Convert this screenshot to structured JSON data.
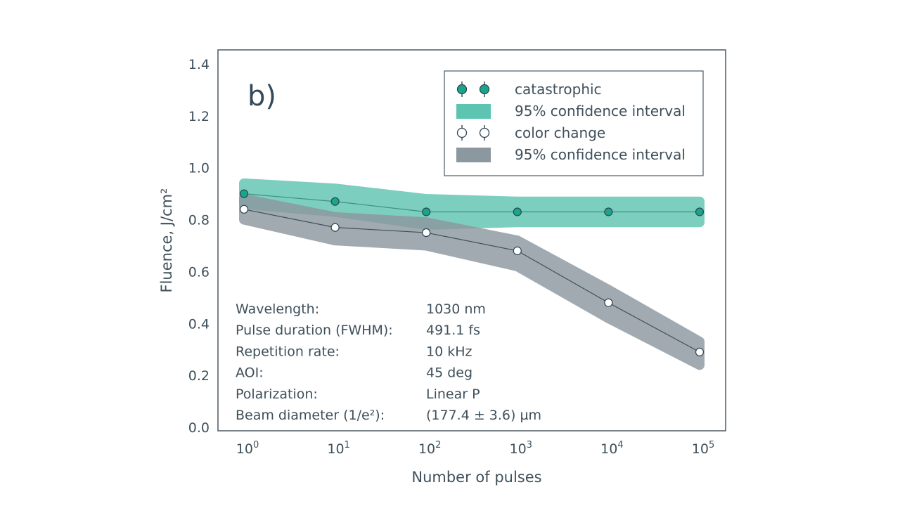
{
  "chart_data": {
    "type": "line",
    "panel_label": "b)",
    "xlabel": "Number of pulses",
    "ylabel": "Fluence, J/cm²",
    "x_scale": "log",
    "x": [
      1,
      10,
      100,
      1000,
      10000,
      100000
    ],
    "x_tick_bases": [
      "10",
      "10",
      "10",
      "10",
      "10",
      "10"
    ],
    "x_tick_exponents": [
      "0",
      "1",
      "2",
      "3",
      "4",
      "5"
    ],
    "ylim": [
      0,
      1.4
    ],
    "y_ticks": [
      "0.0",
      "0.2",
      "0.4",
      "0.6",
      "0.8",
      "1.0",
      "1.2",
      "1.4"
    ],
    "grid": false,
    "legend_position": "top-right",
    "series": [
      {
        "name": "catastrophic",
        "values": [
          0.9,
          0.87,
          0.83,
          0.83,
          0.83,
          0.83
        ],
        "marker_color": "#1aa58b",
        "ci_name": "95% confidence interval",
        "ci_lower": [
          0.86,
          0.83,
          0.78,
          0.79,
          0.79,
          0.79
        ],
        "ci_upper": [
          0.94,
          0.92,
          0.88,
          0.87,
          0.87,
          0.87
        ],
        "ci_color": "#5cc4b0"
      },
      {
        "name": "color change",
        "values": [
          0.84,
          0.77,
          0.75,
          0.68,
          0.48,
          0.29
        ],
        "marker_color": "#ffffff",
        "ci_name": "95% confidence interval",
        "ci_lower": [
          0.8,
          0.72,
          0.7,
          0.62,
          0.42,
          0.24
        ],
        "ci_upper": [
          0.88,
          0.81,
          0.79,
          0.72,
          0.53,
          0.33
        ],
        "ci_color": "#8c989f"
      }
    ],
    "parameters": [
      {
        "label": "Wavelength:",
        "value": "1030 nm"
      },
      {
        "label": "Pulse duration (FWHM):",
        "value": "491.1 fs"
      },
      {
        "label": "Repetition rate:",
        "value": "10 kHz"
      },
      {
        "label": "AOI:",
        "value": "45 deg"
      },
      {
        "label": "Polarization:",
        "value": "Linear P"
      },
      {
        "label": "Beam diameter (1/e²):",
        "value": "(177.4 ± 3.6) µm"
      }
    ]
  }
}
